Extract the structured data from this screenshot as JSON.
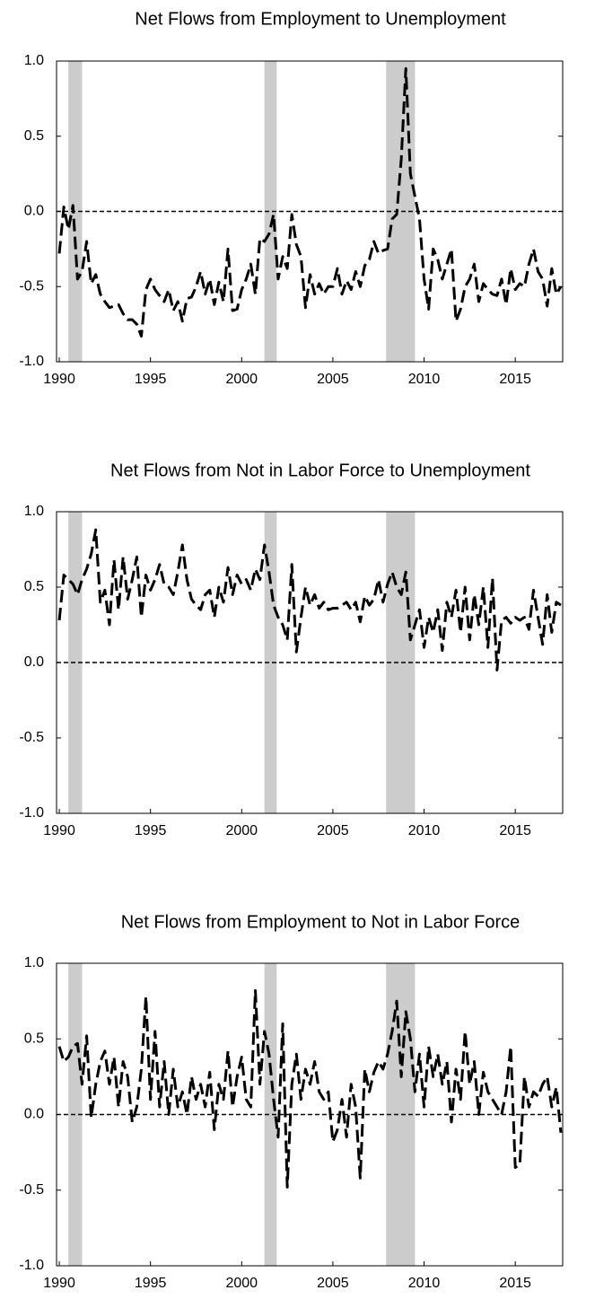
{
  "chart_data": [
    {
      "type": "line",
      "title": "Net Flows from Employment to Unemployment",
      "x": [
        1990,
        1990.25,
        1990.5,
        1990.75,
        1991,
        1991.25,
        1991.5,
        1991.75,
        1992,
        1992.25,
        1992.5,
        1992.75,
        1993,
        1993.25,
        1993.5,
        1993.75,
        1994,
        1994.25,
        1994.5,
        1994.75,
        1995,
        1995.25,
        1995.5,
        1995.75,
        1996,
        1996.25,
        1996.5,
        1996.75,
        1997,
        1997.25,
        1997.5,
        1997.75,
        1998,
        1998.25,
        1998.5,
        1998.75,
        1999,
        1999.25,
        1999.5,
        1999.75,
        2000,
        2000.25,
        2000.5,
        2000.75,
        2001,
        2001.25,
        2001.5,
        2001.75,
        2002,
        2002.25,
        2002.5,
        2002.75,
        2003,
        2003.25,
        2003.5,
        2003.75,
        2004,
        2004.25,
        2004.5,
        2004.75,
        2005,
        2005.25,
        2005.5,
        2005.75,
        2006,
        2006.25,
        2006.5,
        2006.75,
        2007,
        2007.25,
        2007.5,
        2007.75,
        2008,
        2008.25,
        2008.5,
        2008.75,
        2009,
        2009.25,
        2009.5,
        2009.75,
        2010,
        2010.25,
        2010.5,
        2010.75,
        2011,
        2011.25,
        2011.5,
        2011.75,
        2012,
        2012.25,
        2012.5,
        2012.75,
        2013,
        2013.25,
        2013.5,
        2013.75,
        2014,
        2014.25,
        2014.5,
        2014.75,
        2015,
        2015.25,
        2015.5,
        2015.75,
        2016,
        2016.25,
        2016.5,
        2016.75,
        2017,
        2017.25,
        2017.5
      ],
      "values": [
        -0.28,
        0.03,
        -0.12,
        0.04,
        -0.45,
        -0.4,
        -0.2,
        -0.48,
        -0.42,
        -0.55,
        -0.6,
        -0.64,
        -0.63,
        -0.62,
        -0.68,
        -0.72,
        -0.72,
        -0.75,
        -0.83,
        -0.52,
        -0.45,
        -0.52,
        -0.56,
        -0.6,
        -0.52,
        -0.66,
        -0.6,
        -0.73,
        -0.58,
        -0.57,
        -0.5,
        -0.4,
        -0.55,
        -0.45,
        -0.62,
        -0.47,
        -0.6,
        -0.25,
        -0.66,
        -0.65,
        -0.52,
        -0.45,
        -0.35,
        -0.55,
        -0.18,
        -0.2,
        -0.15,
        -0.02,
        -0.45,
        -0.3,
        -0.38,
        -0.02,
        -0.22,
        -0.3,
        -0.64,
        -0.42,
        -0.55,
        -0.48,
        -0.55,
        -0.5,
        -0.5,
        -0.38,
        -0.55,
        -0.46,
        -0.52,
        -0.4,
        -0.5,
        -0.36,
        -0.32,
        -0.2,
        -0.28,
        -0.26,
        -0.25,
        -0.05,
        -0.02,
        0.35,
        0.95,
        0.25,
        0.1,
        -0.05,
        -0.45,
        -0.65,
        -0.25,
        -0.32,
        -0.45,
        -0.35,
        -0.25,
        -0.73,
        -0.65,
        -0.5,
        -0.45,
        -0.35,
        -0.6,
        -0.48,
        -0.52,
        -0.55,
        -0.56,
        -0.45,
        -0.62,
        -0.38,
        -0.52,
        -0.48,
        -0.5,
        -0.35,
        -0.25,
        -0.4,
        -0.45,
        -0.63,
        -0.38,
        -0.55,
        -0.5
      ],
      "color": "#000000",
      "shaded_periods": [
        [
          1990.5,
          1991.25
        ],
        [
          2001.25,
          2001.92
        ],
        [
          2007.92,
          2009.5
        ]
      ],
      "xlim": [
        1989.85,
        2017.6
      ],
      "xticks": [
        1990,
        1995,
        2000,
        2005,
        2010,
        2015
      ],
      "ylim": [
        -1,
        1
      ],
      "yticks": [
        {
          "value": -1,
          "label": "-1.0"
        },
        -0.5,
        {
          "value": 0,
          "label": "0.0"
        },
        0.5,
        {
          "value": 1,
          "label": "1.0"
        }
      ]
    },
    {
      "type": "line",
      "title": "Net Flows from Not in Labor Force to Unemployment",
      "x": [
        1990,
        1990.25,
        1990.5,
        1990.75,
        1991,
        1991.25,
        1991.5,
        1991.75,
        1992,
        1992.25,
        1992.5,
        1992.75,
        1993,
        1993.25,
        1993.5,
        1993.75,
        1994,
        1994.25,
        1994.5,
        1994.75,
        1995,
        1995.25,
        1995.5,
        1995.75,
        1996,
        1996.25,
        1996.5,
        1996.75,
        1997,
        1997.25,
        1997.5,
        1997.75,
        1998,
        1998.25,
        1998.5,
        1998.75,
        1999,
        1999.25,
        1999.5,
        1999.75,
        2000,
        2000.25,
        2000.5,
        2000.75,
        2001,
        2001.25,
        2001.5,
        2001.75,
        2002,
        2002.25,
        2002.5,
        2002.75,
        2003,
        2003.25,
        2003.5,
        2003.75,
        2004,
        2004.25,
        2004.5,
        2004.75,
        2005,
        2005.25,
        2005.5,
        2005.75,
        2006,
        2006.25,
        2006.5,
        2006.75,
        2007,
        2007.25,
        2007.5,
        2007.75,
        2008,
        2008.25,
        2008.5,
        2008.75,
        2009,
        2009.25,
        2009.5,
        2009.75,
        2010,
        2010.25,
        2010.5,
        2010.75,
        2011,
        2011.25,
        2011.5,
        2011.75,
        2012,
        2012.25,
        2012.5,
        2012.75,
        2013,
        2013.25,
        2013.5,
        2013.75,
        2014,
        2014.25,
        2014.5,
        2014.75,
        2015,
        2015.25,
        2015.5,
        2015.75,
        2016,
        2016.25,
        2016.5,
        2016.75,
        2017,
        2017.25,
        2017.5
      ],
      "values": [
        0.28,
        0.58,
        0.55,
        0.52,
        0.45,
        0.55,
        0.62,
        0.72,
        0.88,
        0.4,
        0.48,
        0.25,
        0.68,
        0.35,
        0.7,
        0.42,
        0.55,
        0.7,
        0.3,
        0.58,
        0.48,
        0.55,
        0.65,
        0.52,
        0.5,
        0.45,
        0.6,
        0.78,
        0.55,
        0.42,
        0.38,
        0.35,
        0.45,
        0.48,
        0.3,
        0.5,
        0.4,
        0.63,
        0.45,
        0.58,
        0.52,
        0.55,
        0.48,
        0.62,
        0.55,
        0.78,
        0.6,
        0.38,
        0.3,
        0.25,
        0.15,
        0.65,
        0.07,
        0.3,
        0.5,
        0.38,
        0.45,
        0.36,
        0.4,
        0.35,
        0.36,
        0.36,
        0.38,
        0.4,
        0.35,
        0.4,
        0.27,
        0.44,
        0.38,
        0.42,
        0.55,
        0.4,
        0.52,
        0.6,
        0.5,
        0.45,
        0.6,
        0.15,
        0.25,
        0.35,
        0.1,
        0.3,
        0.2,
        0.35,
        0.08,
        0.4,
        0.3,
        0.48,
        0.2,
        0.5,
        0.15,
        0.45,
        0.25,
        0.5,
        0.1,
        0.56,
        -0.05,
        0.28,
        0.3,
        0.26,
        0.3,
        0.28,
        0.3,
        0.22,
        0.48,
        0.3,
        0.12,
        0.45,
        0.2,
        0.4,
        0.38
      ],
      "color": "#000000",
      "shaded_periods": [
        [
          1990.5,
          1991.25
        ],
        [
          2001.25,
          2001.92
        ],
        [
          2007.92,
          2009.5
        ]
      ],
      "xlim": [
        1989.85,
        2017.6
      ],
      "xticks": [
        1990,
        1995,
        2000,
        2005,
        2010,
        2015
      ],
      "ylim": [
        -1,
        1
      ],
      "yticks": [
        {
          "value": -1,
          "label": "-1.0"
        },
        -0.5,
        {
          "value": 0,
          "label": "0.0"
        },
        0.5,
        {
          "value": 1,
          "label": "1.0"
        }
      ]
    },
    {
      "type": "line",
      "title": "Net Flows from Employment to Not in Labor Force",
      "x": [
        1990,
        1990.25,
        1990.5,
        1990.75,
        1991,
        1991.25,
        1991.5,
        1991.75,
        1992,
        1992.25,
        1992.5,
        1992.75,
        1993,
        1993.25,
        1993.5,
        1993.75,
        1994,
        1994.25,
        1994.5,
        1994.75,
        1995,
        1995.25,
        1995.5,
        1995.75,
        1996,
        1996.25,
        1996.5,
        1996.75,
        1997,
        1997.25,
        1997.5,
        1997.75,
        1998,
        1998.25,
        1998.5,
        1998.75,
        1999,
        1999.25,
        1999.5,
        1999.75,
        2000,
        2000.25,
        2000.5,
        2000.75,
        2001,
        2001.25,
        2001.5,
        2001.75,
        2002,
        2002.25,
        2002.5,
        2002.75,
        2003,
        2003.25,
        2003.5,
        2003.75,
        2004,
        2004.25,
        2004.5,
        2004.75,
        2005,
        2005.25,
        2005.5,
        2005.75,
        2006,
        2006.25,
        2006.5,
        2006.75,
        2007,
        2007.25,
        2007.5,
        2007.75,
        2008,
        2008.25,
        2008.5,
        2008.75,
        2009,
        2009.25,
        2009.5,
        2009.75,
        2010,
        2010.25,
        2010.5,
        2010.75,
        2011,
        2011.25,
        2011.5,
        2011.75,
        2012,
        2012.25,
        2012.5,
        2012.75,
        2013,
        2013.25,
        2013.5,
        2013.75,
        2014,
        2014.25,
        2014.5,
        2014.75,
        2015,
        2015.25,
        2015.5,
        2015.75,
        2016,
        2016.25,
        2016.5,
        2016.75,
        2017,
        2017.25,
        2017.5
      ],
      "values": [
        0.45,
        0.35,
        0.38,
        0.45,
        0.47,
        0.2,
        0.52,
        -0.02,
        0.2,
        0.35,
        0.42,
        0.2,
        0.38,
        0.05,
        0.35,
        0.25,
        -0.05,
        0.05,
        0.3,
        0.78,
        0.1,
        0.55,
        0.05,
        0.35,
        0.0,
        0.3,
        0.05,
        0.15,
        0.0,
        0.25,
        0.1,
        0.2,
        0.05,
        0.28,
        -0.1,
        0.2,
        0.1,
        0.42,
        0.05,
        0.25,
        0.38,
        0.1,
        0.05,
        0.82,
        0.2,
        0.55,
        0.4,
        0.1,
        -0.15,
        0.6,
        -0.48,
        0.2,
        0.4,
        0.1,
        0.3,
        0.2,
        0.35,
        0.15,
        0.1,
        0.15,
        -0.18,
        -0.1,
        0.1,
        -0.15,
        0.2,
        0.05,
        -0.42,
        0.3,
        0.15,
        0.28,
        0.35,
        0.3,
        0.4,
        0.55,
        0.75,
        0.25,
        0.68,
        0.5,
        0.15,
        0.4,
        0.05,
        0.45,
        0.25,
        0.4,
        0.2,
        0.35,
        -0.05,
        0.3,
        0.1,
        0.55,
        0.2,
        0.35,
        0.0,
        0.28,
        0.15,
        0.1,
        0.05,
        0.0,
        0.15,
        0.45,
        -0.35,
        -0.33,
        0.25,
        0.05,
        0.15,
        0.12,
        0.2,
        0.25,
        0.05,
        0.18,
        -0.12
      ],
      "color": "#000000",
      "shaded_periods": [
        [
          1990.5,
          1991.25
        ],
        [
          2001.25,
          2001.92
        ],
        [
          2007.92,
          2009.5
        ]
      ],
      "xlim": [
        1989.85,
        2017.6
      ],
      "xticks": [
        1990,
        1995,
        2000,
        2005,
        2010,
        2015
      ],
      "ylim": [
        -1,
        1
      ],
      "yticks": [
        {
          "value": -1,
          "label": "-1.0"
        },
        -0.5,
        {
          "value": 0,
          "label": "0.0"
        },
        0.5,
        {
          "value": 1,
          "label": "1.0"
        }
      ]
    }
  ]
}
